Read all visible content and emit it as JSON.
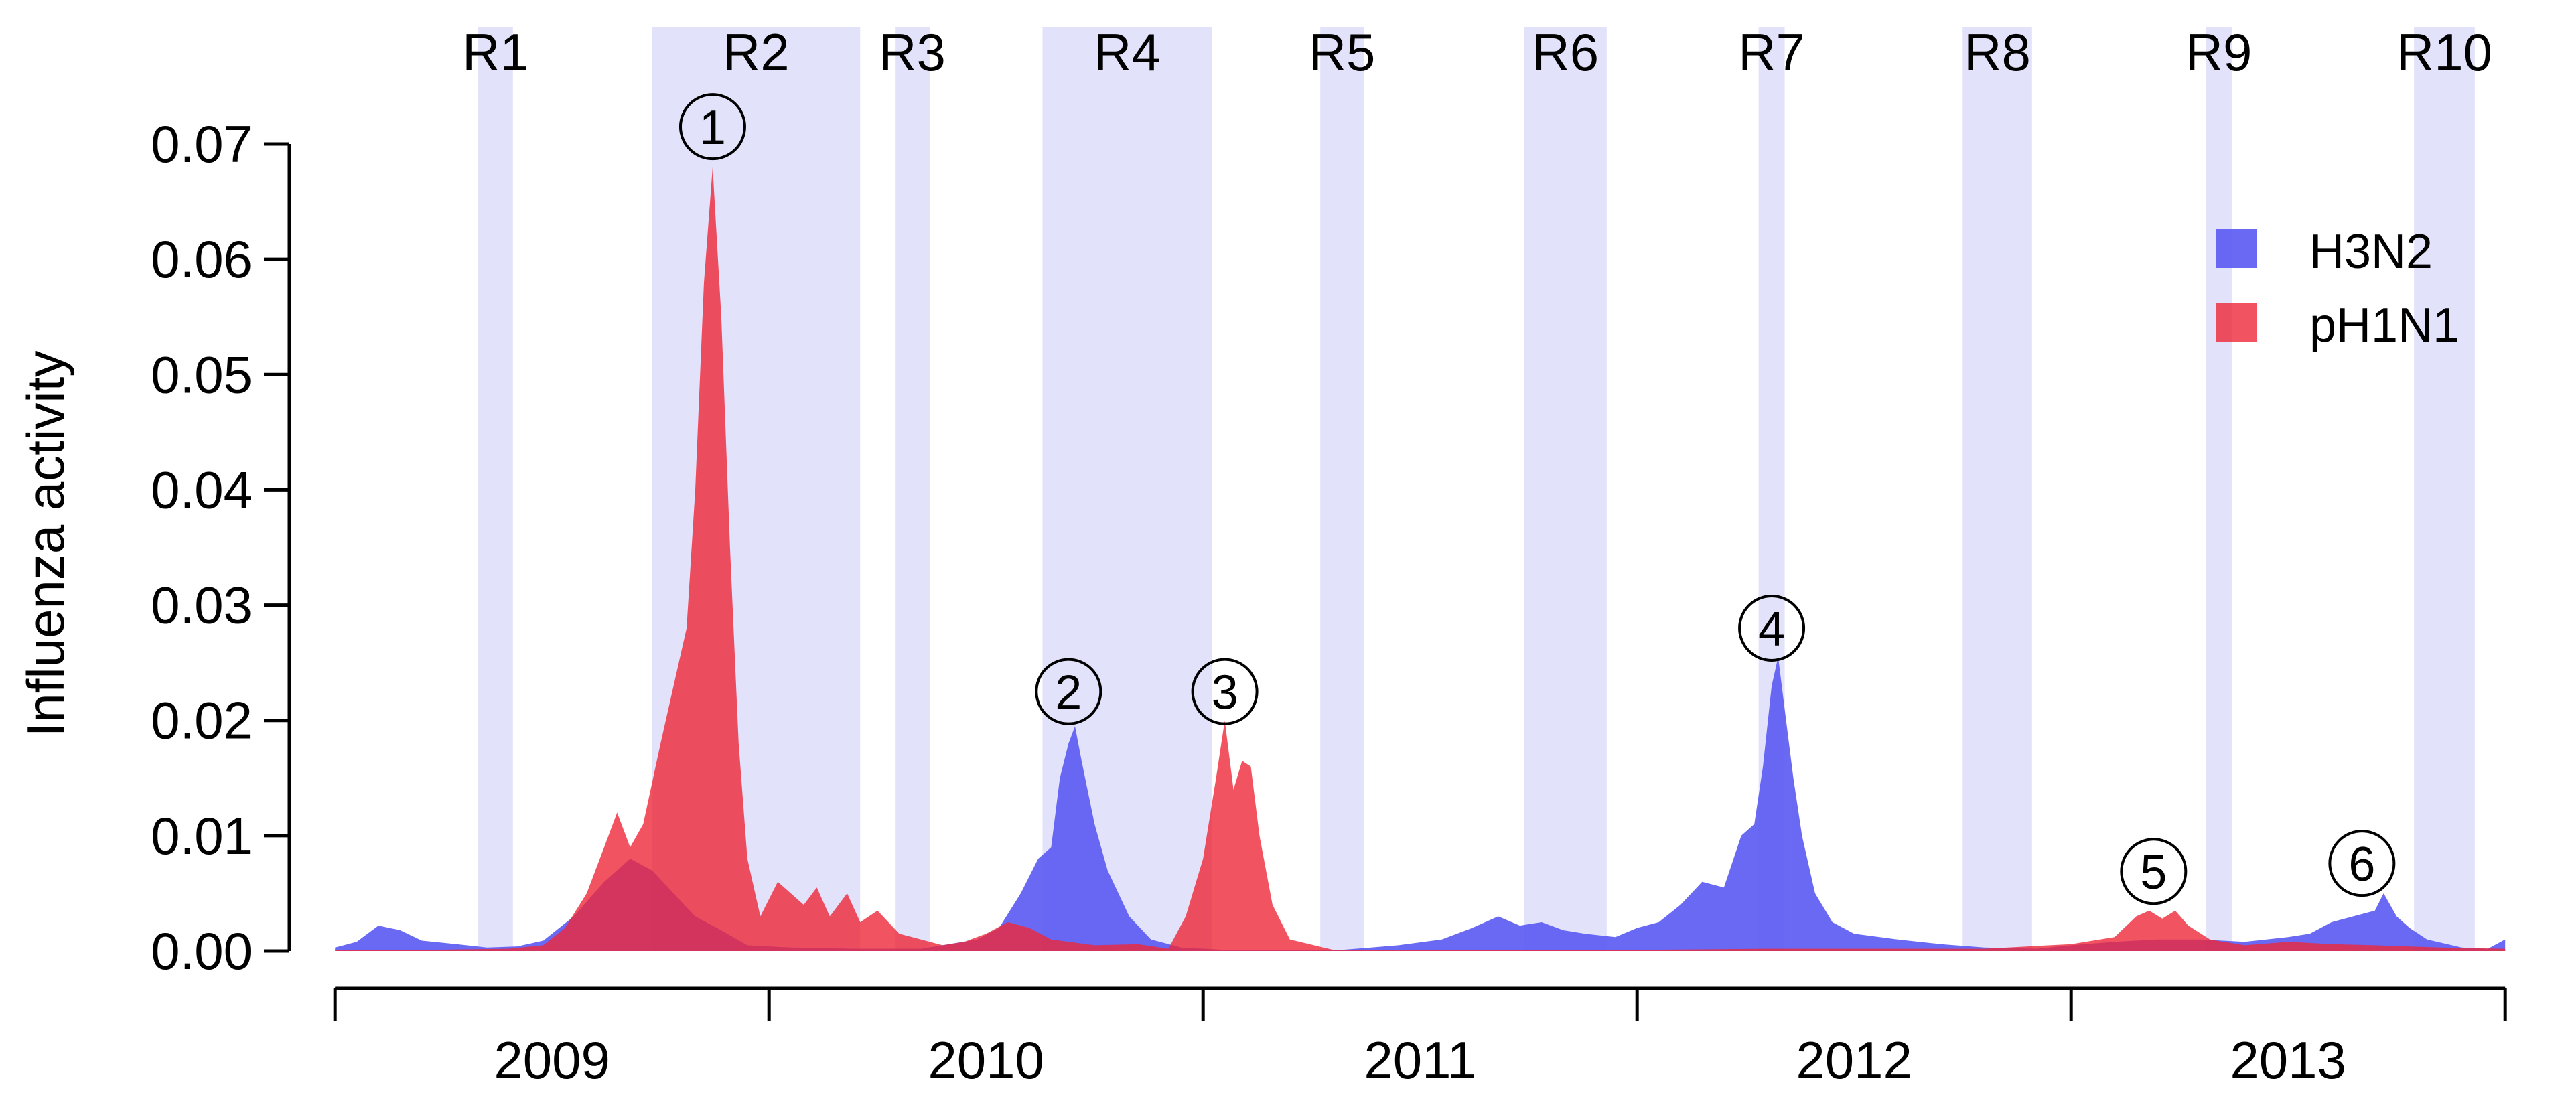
{
  "chart_data": {
    "type": "area",
    "title": "",
    "xlabel": "",
    "ylabel": "Influenza activity",
    "xlim": [
      2008.6,
      2013.6
    ],
    "ylim": [
      0,
      0.07
    ],
    "yticks": [
      "0.00",
      "0.01",
      "0.02",
      "0.03",
      "0.04",
      "0.05",
      "0.06",
      "0.07"
    ],
    "ytick_values": [
      0,
      0.01,
      0.02,
      0.03,
      0.04,
      0.05,
      0.06,
      0.07
    ],
    "year_labels": [
      {
        "label": "2009",
        "center": 2009.0
      },
      {
        "label": "2010",
        "center": 2010.0
      },
      {
        "label": "2011",
        "center": 2011.0
      },
      {
        "label": "2012",
        "center": 2012.0
      },
      {
        "label": "2013",
        "center": 2013.0
      }
    ],
    "year_ticks": [
      2008.5,
      2009.5,
      2010.5,
      2011.5,
      2012.5,
      2013.5
    ],
    "regions": [
      {
        "label": "R1",
        "start": 2008.83,
        "end": 2008.91
      },
      {
        "label": "R2",
        "start": 2009.23,
        "end": 2009.71
      },
      {
        "label": "R3",
        "start": 2009.79,
        "end": 2009.87
      },
      {
        "label": "R4",
        "start": 2010.13,
        "end": 2010.52
      },
      {
        "label": "R5",
        "start": 2010.77,
        "end": 2010.87
      },
      {
        "label": "R6",
        "start": 2011.24,
        "end": 2011.43
      },
      {
        "label": "R7",
        "start": 2011.78,
        "end": 2011.84
      },
      {
        "label": "R8",
        "start": 2012.25,
        "end": 2012.41
      },
      {
        "label": "R9",
        "start": 2012.81,
        "end": 2012.87
      },
      {
        "label": "R10",
        "start": 2013.29,
        "end": 2013.43
      }
    ],
    "legend": {
      "position": "top-right",
      "entries": [
        "H3N2",
        "pH1N1"
      ]
    },
    "annotations": [
      {
        "label": "1",
        "x": 2009.37,
        "y": 0.0715
      },
      {
        "label": "2",
        "x": 2010.19,
        "y": 0.0225
      },
      {
        "label": "3",
        "x": 2010.55,
        "y": 0.0225
      },
      {
        "label": "4",
        "x": 2011.81,
        "y": 0.028
      },
      {
        "label": "5",
        "x": 2012.69,
        "y": 0.0069
      },
      {
        "label": "6",
        "x": 2013.17,
        "y": 0.0076
      }
    ],
    "series": [
      {
        "name": "H3N2",
        "color": "#5c5cf2",
        "points": [
          [
            2008.5,
            0.0003
          ],
          [
            2008.55,
            0.0008
          ],
          [
            2008.6,
            0.0022
          ],
          [
            2008.65,
            0.0018
          ],
          [
            2008.7,
            0.0009
          ],
          [
            2008.78,
            0.0006
          ],
          [
            2008.85,
            0.0003
          ],
          [
            2008.92,
            0.0004
          ],
          [
            2008.98,
            0.0009
          ],
          [
            2009.05,
            0.003
          ],
          [
            2009.12,
            0.006
          ],
          [
            2009.18,
            0.008
          ],
          [
            2009.23,
            0.007
          ],
          [
            2009.28,
            0.005
          ],
          [
            2009.33,
            0.003
          ],
          [
            2009.38,
            0.002
          ],
          [
            2009.45,
            0.0005
          ],
          [
            2009.55,
            0.0003
          ],
          [
            2009.7,
            0.0002
          ],
          [
            2009.85,
            0.0002
          ],
          [
            2009.98,
            0.001
          ],
          [
            2010.03,
            0.002
          ],
          [
            2010.08,
            0.005
          ],
          [
            2010.12,
            0.008
          ],
          [
            2010.15,
            0.009
          ],
          [
            2010.17,
            0.015
          ],
          [
            2010.19,
            0.018
          ],
          [
            2010.205,
            0.0195
          ],
          [
            2010.22,
            0.0165
          ],
          [
            2010.25,
            0.011
          ],
          [
            2010.28,
            0.007
          ],
          [
            2010.33,
            0.003
          ],
          [
            2010.38,
            0.001
          ],
          [
            2010.45,
            0.0003
          ],
          [
            2010.55,
            0.0001
          ],
          [
            2010.7,
            0.0001
          ],
          [
            2010.82,
            0.0001
          ],
          [
            2010.95,
            0.0005
          ],
          [
            2011.05,
            0.001
          ],
          [
            2011.12,
            0.002
          ],
          [
            2011.18,
            0.003
          ],
          [
            2011.23,
            0.0022
          ],
          [
            2011.28,
            0.0025
          ],
          [
            2011.33,
            0.0018
          ],
          [
            2011.38,
            0.0015
          ],
          [
            2011.45,
            0.0012
          ],
          [
            2011.5,
            0.002
          ],
          [
            2011.55,
            0.0025
          ],
          [
            2011.6,
            0.004
          ],
          [
            2011.65,
            0.006
          ],
          [
            2011.7,
            0.0055
          ],
          [
            2011.74,
            0.01
          ],
          [
            2011.77,
            0.011
          ],
          [
            2011.79,
            0.016
          ],
          [
            2011.81,
            0.023
          ],
          [
            2011.825,
            0.0255
          ],
          [
            2011.84,
            0.021
          ],
          [
            2011.86,
            0.015
          ],
          [
            2011.88,
            0.01
          ],
          [
            2011.91,
            0.005
          ],
          [
            2011.95,
            0.0025
          ],
          [
            2012.0,
            0.0015
          ],
          [
            2012.1,
            0.001
          ],
          [
            2012.2,
            0.0006
          ],
          [
            2012.3,
            0.0003
          ],
          [
            2012.42,
            0.0002
          ],
          [
            2012.5,
            0.0005
          ],
          [
            2012.6,
            0.0008
          ],
          [
            2012.7,
            0.001
          ],
          [
            2012.8,
            0.001
          ],
          [
            2012.9,
            0.0008
          ],
          [
            2013.0,
            0.0012
          ],
          [
            2013.05,
            0.0015
          ],
          [
            2013.1,
            0.0025
          ],
          [
            2013.15,
            0.003
          ],
          [
            2013.2,
            0.0035
          ],
          [
            2013.22,
            0.005
          ],
          [
            2013.25,
            0.003
          ],
          [
            2013.28,
            0.002
          ],
          [
            2013.32,
            0.001
          ],
          [
            2013.4,
            0.0003
          ],
          [
            2013.46,
            0.0002
          ],
          [
            2013.5,
            0.001
          ]
        ]
      },
      {
        "name": "pH1N1",
        "color": "#ee2838",
        "points": [
          [
            2008.5,
            0.0001
          ],
          [
            2008.7,
            0.0001
          ],
          [
            2008.9,
            0.0002
          ],
          [
            2008.98,
            0.0005
          ],
          [
            2009.03,
            0.002
          ],
          [
            2009.08,
            0.005
          ],
          [
            2009.12,
            0.009
          ],
          [
            2009.15,
            0.012
          ],
          [
            2009.18,
            0.009
          ],
          [
            2009.21,
            0.011
          ],
          [
            2009.25,
            0.018
          ],
          [
            2009.28,
            0.023
          ],
          [
            2009.31,
            0.028
          ],
          [
            2009.33,
            0.04
          ],
          [
            2009.35,
            0.058
          ],
          [
            2009.37,
            0.068
          ],
          [
            2009.39,
            0.055
          ],
          [
            2009.41,
            0.035
          ],
          [
            2009.43,
            0.018
          ],
          [
            2009.45,
            0.008
          ],
          [
            2009.48,
            0.003
          ],
          [
            2009.52,
            0.006
          ],
          [
            2009.55,
            0.005
          ],
          [
            2009.58,
            0.004
          ],
          [
            2009.61,
            0.0055
          ],
          [
            2009.64,
            0.003
          ],
          [
            2009.68,
            0.005
          ],
          [
            2009.71,
            0.0025
          ],
          [
            2009.75,
            0.0035
          ],
          [
            2009.8,
            0.0015
          ],
          [
            2009.85,
            0.001
          ],
          [
            2009.9,
            0.0005
          ],
          [
            2009.95,
            0.0008
          ],
          [
            2010.0,
            0.0015
          ],
          [
            2010.05,
            0.0025
          ],
          [
            2010.1,
            0.002
          ],
          [
            2010.15,
            0.001
          ],
          [
            2010.25,
            0.0005
          ],
          [
            2010.35,
            0.0006
          ],
          [
            2010.42,
            0.0002
          ],
          [
            2010.46,
            0.003
          ],
          [
            2010.5,
            0.008
          ],
          [
            2010.53,
            0.015
          ],
          [
            2010.55,
            0.02
          ],
          [
            2010.57,
            0.014
          ],
          [
            2010.59,
            0.0165
          ],
          [
            2010.61,
            0.016
          ],
          [
            2010.63,
            0.01
          ],
          [
            2010.66,
            0.004
          ],
          [
            2010.7,
            0.001
          ],
          [
            2010.8,
            0.0001
          ],
          [
            2011.0,
            0.0001
          ],
          [
            2011.5,
            0.0001
          ],
          [
            2011.8,
            0.0002
          ],
          [
            2012.0,
            0.0002
          ],
          [
            2012.3,
            0.0002
          ],
          [
            2012.5,
            0.0006
          ],
          [
            2012.6,
            0.0012
          ],
          [
            2012.65,
            0.003
          ],
          [
            2012.68,
            0.0035
          ],
          [
            2012.71,
            0.0028
          ],
          [
            2012.74,
            0.0035
          ],
          [
            2012.77,
            0.0022
          ],
          [
            2012.82,
            0.001
          ],
          [
            2012.9,
            0.0005
          ],
          [
            2013.0,
            0.0008
          ],
          [
            2013.1,
            0.0006
          ],
          [
            2013.2,
            0.0005
          ],
          [
            2013.35,
            0.0003
          ],
          [
            2013.5,
            0.0002
          ]
        ]
      }
    ]
  }
}
